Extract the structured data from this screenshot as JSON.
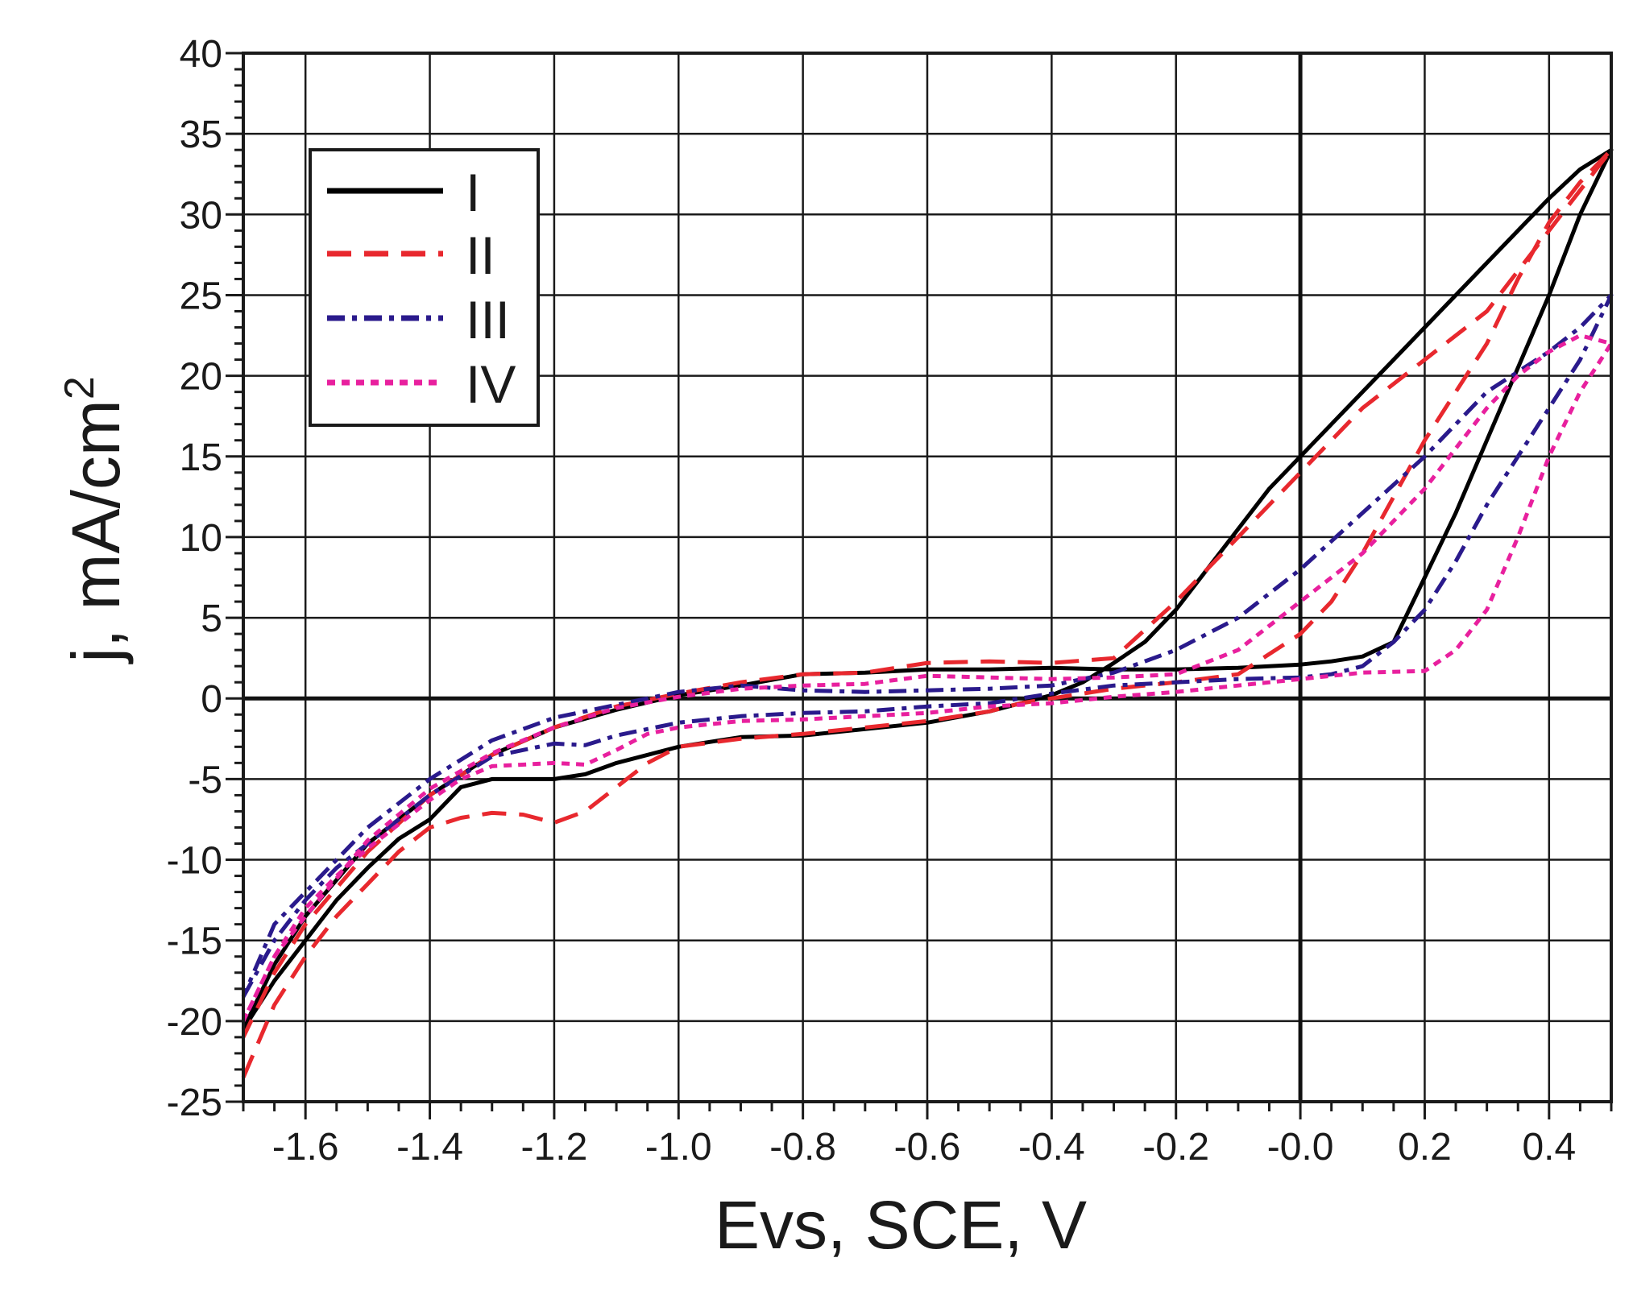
{
  "chart_data": {
    "type": "line",
    "xlabel": "Evs, SCE, V",
    "ylabel": "j, mA/cm",
    "ylabel_superscript": "2",
    "xlim": [
      -1.7,
      0.5
    ],
    "ylim": [
      -25,
      40
    ],
    "x_ticks": [
      {
        "value": -1.6,
        "label": "-1.6"
      },
      {
        "value": -1.4,
        "label": "-1.4"
      },
      {
        "value": -1.2,
        "label": "-1.2"
      },
      {
        "value": -1.0,
        "label": "-1.0"
      },
      {
        "value": -0.8,
        "label": "-0.8"
      },
      {
        "value": -0.6,
        "label": "-0.6"
      },
      {
        "value": -0.4,
        "label": "-0.4"
      },
      {
        "value": -0.2,
        "label": "-0.2"
      },
      {
        "value": 0.0,
        "label": "-0.0"
      },
      {
        "value": 0.2,
        "label": "0.2"
      },
      {
        "value": 0.4,
        "label": "0.4"
      }
    ],
    "y_ticks": [
      {
        "value": 40,
        "label": "40"
      },
      {
        "value": 35,
        "label": "35"
      },
      {
        "value": 30,
        "label": "30"
      },
      {
        "value": 25,
        "label": "25"
      },
      {
        "value": 20,
        "label": "20"
      },
      {
        "value": 15,
        "label": "15"
      },
      {
        "value": 10,
        "label": "10"
      },
      {
        "value": 5,
        "label": "5"
      },
      {
        "value": 0,
        "label": "0"
      },
      {
        "value": -5,
        "label": "-5"
      },
      {
        "value": -10,
        "label": "-10"
      },
      {
        "value": -15,
        "label": "-15"
      },
      {
        "value": -20,
        "label": "-20"
      },
      {
        "value": -25,
        "label": "-25"
      }
    ],
    "grid": true,
    "legend_position": "top-left",
    "series": [
      {
        "name": "I",
        "color": "#000000",
        "style": "solid",
        "points": [
          [
            -1.7,
            -20.5
          ],
          [
            -1.65,
            -17.5
          ],
          [
            -1.6,
            -15
          ],
          [
            -1.55,
            -12.5
          ],
          [
            -1.5,
            -10.5
          ],
          [
            -1.45,
            -8.7
          ],
          [
            -1.4,
            -7.5
          ],
          [
            -1.35,
            -5.5
          ],
          [
            -1.3,
            -5
          ],
          [
            -1.2,
            -5
          ],
          [
            -1.15,
            -4.7
          ],
          [
            -1.1,
            -4
          ],
          [
            -1.0,
            -3
          ],
          [
            -0.9,
            -2.4
          ],
          [
            -0.8,
            -2.3
          ],
          [
            -0.7,
            -1.9
          ],
          [
            -0.6,
            -1.5
          ],
          [
            -0.5,
            -0.8
          ],
          [
            -0.4,
            0.2
          ],
          [
            -0.35,
            1.0
          ],
          [
            -0.3,
            2.2
          ],
          [
            -0.25,
            3.5
          ],
          [
            -0.2,
            5.5
          ],
          [
            -0.15,
            8
          ],
          [
            -0.1,
            10.5
          ],
          [
            -0.05,
            13
          ],
          [
            0.0,
            15
          ],
          [
            0.05,
            17
          ],
          [
            0.1,
            19
          ],
          [
            0.15,
            21
          ],
          [
            0.2,
            23
          ],
          [
            0.3,
            27
          ],
          [
            0.4,
            31
          ],
          [
            0.45,
            32.8
          ],
          [
            0.5,
            34
          ],
          [
            0.45,
            30
          ],
          [
            0.4,
            25
          ],
          [
            0.35,
            20.5
          ],
          [
            0.3,
            16
          ],
          [
            0.25,
            11.5
          ],
          [
            0.2,
            7.5
          ],
          [
            0.15,
            3.5
          ],
          [
            0.1,
            2.6
          ],
          [
            0.05,
            2.3
          ],
          [
            0.0,
            2.1
          ],
          [
            -0.1,
            1.9
          ],
          [
            -0.2,
            1.8
          ],
          [
            -0.3,
            1.8
          ],
          [
            -0.4,
            1.9
          ],
          [
            -0.5,
            1.8
          ],
          [
            -0.6,
            1.8
          ],
          [
            -0.7,
            1.6
          ],
          [
            -0.8,
            1.5
          ],
          [
            -0.9,
            0.8
          ],
          [
            -1.0,
            0.2
          ],
          [
            -1.1,
            -0.7
          ],
          [
            -1.2,
            -1.8
          ],
          [
            -1.3,
            -3.5
          ],
          [
            -1.4,
            -6
          ],
          [
            -1.5,
            -9
          ],
          [
            -1.6,
            -13.5
          ],
          [
            -1.65,
            -16.5
          ],
          [
            -1.7,
            -20.5
          ]
        ]
      },
      {
        "name": "II",
        "color": "#e8282e",
        "style": "dashed",
        "points": [
          [
            -1.7,
            -23.5
          ],
          [
            -1.65,
            -19
          ],
          [
            -1.6,
            -16
          ],
          [
            -1.55,
            -13.5
          ],
          [
            -1.5,
            -11.5
          ],
          [
            -1.45,
            -9.5
          ],
          [
            -1.4,
            -8
          ],
          [
            -1.35,
            -7.4
          ],
          [
            -1.3,
            -7.1
          ],
          [
            -1.25,
            -7.2
          ],
          [
            -1.2,
            -7.7
          ],
          [
            -1.15,
            -7
          ],
          [
            -1.1,
            -5.5
          ],
          [
            -1.05,
            -4
          ],
          [
            -1.0,
            -3
          ],
          [
            -0.9,
            -2.5
          ],
          [
            -0.8,
            -2.2
          ],
          [
            -0.7,
            -1.8
          ],
          [
            -0.6,
            -1.4
          ],
          [
            -0.5,
            -0.8
          ],
          [
            -0.45,
            -0.3
          ],
          [
            -0.4,
            0
          ],
          [
            -0.3,
            0.6
          ],
          [
            -0.2,
            1.0
          ],
          [
            -0.1,
            1.5
          ],
          [
            0.0,
            4
          ],
          [
            0.05,
            6
          ],
          [
            0.1,
            9
          ],
          [
            0.15,
            12.5
          ],
          [
            0.2,
            16
          ],
          [
            0.25,
            19
          ],
          [
            0.3,
            22
          ],
          [
            0.35,
            26
          ],
          [
            0.4,
            29.5
          ],
          [
            0.45,
            32
          ],
          [
            0.5,
            34
          ],
          [
            0.45,
            31.5
          ],
          [
            0.4,
            29
          ],
          [
            0.35,
            26.5
          ],
          [
            0.3,
            24
          ],
          [
            0.2,
            21
          ],
          [
            0.1,
            18
          ],
          [
            0.0,
            14
          ],
          [
            -0.1,
            10
          ],
          [
            -0.2,
            6
          ],
          [
            -0.3,
            2.5
          ],
          [
            -0.4,
            2.2
          ],
          [
            -0.5,
            2.3
          ],
          [
            -0.6,
            2.2
          ],
          [
            -0.7,
            1.6
          ],
          [
            -0.8,
            1.5
          ],
          [
            -0.9,
            1.0
          ],
          [
            -1.0,
            0.3
          ],
          [
            -1.1,
            -0.5
          ],
          [
            -1.2,
            -1.8
          ],
          [
            -1.3,
            -3.5
          ],
          [
            -1.4,
            -6
          ],
          [
            -1.5,
            -9.5
          ],
          [
            -1.6,
            -14
          ],
          [
            -1.65,
            -17
          ],
          [
            -1.7,
            -21
          ]
        ]
      },
      {
        "name": "III",
        "color": "#2a1a8c",
        "style": "dash-dot",
        "points": [
          [
            -1.7,
            -18.5
          ],
          [
            -1.65,
            -15
          ],
          [
            -1.6,
            -12.5
          ],
          [
            -1.55,
            -10.5
          ],
          [
            -1.5,
            -9
          ],
          [
            -1.45,
            -7.5
          ],
          [
            -1.4,
            -6
          ],
          [
            -1.35,
            -4.8
          ],
          [
            -1.3,
            -3.6
          ],
          [
            -1.2,
            -2.8
          ],
          [
            -1.15,
            -2.9
          ],
          [
            -1.1,
            -2.3
          ],
          [
            -1.0,
            -1.5
          ],
          [
            -0.9,
            -1.1
          ],
          [
            -0.8,
            -0.9
          ],
          [
            -0.7,
            -0.8
          ],
          [
            -0.6,
            -0.5
          ],
          [
            -0.5,
            -0.3
          ],
          [
            -0.4,
            0.3
          ],
          [
            -0.3,
            0.8
          ],
          [
            -0.2,
            1.0
          ],
          [
            -0.1,
            1.2
          ],
          [
            0.0,
            1.3
          ],
          [
            0.05,
            1.5
          ],
          [
            0.1,
            2
          ],
          [
            0.15,
            3.5
          ],
          [
            0.2,
            5.5
          ],
          [
            0.25,
            8.5
          ],
          [
            0.3,
            12
          ],
          [
            0.35,
            15
          ],
          [
            0.4,
            18
          ],
          [
            0.45,
            21
          ],
          [
            0.5,
            25
          ],
          [
            0.45,
            23
          ],
          [
            0.4,
            21.5
          ],
          [
            0.3,
            19
          ],
          [
            0.2,
            15
          ],
          [
            0.1,
            11.5
          ],
          [
            0.0,
            8
          ],
          [
            -0.1,
            5
          ],
          [
            -0.2,
            3
          ],
          [
            -0.3,
            1.6
          ],
          [
            -0.4,
            0.8
          ],
          [
            -0.5,
            0.6
          ],
          [
            -0.6,
            0.5
          ],
          [
            -0.7,
            0.4
          ],
          [
            -0.8,
            0.5
          ],
          [
            -0.9,
            0.8
          ],
          [
            -1.0,
            0.4
          ],
          [
            -1.1,
            -0.4
          ],
          [
            -1.2,
            -1.2
          ],
          [
            -1.3,
            -2.6
          ],
          [
            -1.4,
            -5
          ],
          [
            -1.5,
            -8
          ],
          [
            -1.6,
            -12
          ],
          [
            -1.65,
            -14
          ],
          [
            -1.7,
            -18.5
          ]
        ]
      },
      {
        "name": "IV",
        "color": "#e8209e",
        "style": "dotted",
        "points": [
          [
            -1.7,
            -20
          ],
          [
            -1.65,
            -16
          ],
          [
            -1.6,
            -13
          ],
          [
            -1.55,
            -11
          ],
          [
            -1.5,
            -9.3
          ],
          [
            -1.45,
            -7.8
          ],
          [
            -1.4,
            -6.3
          ],
          [
            -1.35,
            -5
          ],
          [
            -1.3,
            -4.2
          ],
          [
            -1.2,
            -4
          ],
          [
            -1.15,
            -4.1
          ],
          [
            -1.1,
            -3.2
          ],
          [
            -1.05,
            -2.2
          ],
          [
            -1.0,
            -1.8
          ],
          [
            -0.9,
            -1.4
          ],
          [
            -0.8,
            -1.3
          ],
          [
            -0.7,
            -1.1
          ],
          [
            -0.6,
            -0.9
          ],
          [
            -0.5,
            -0.5
          ],
          [
            -0.4,
            -0.3
          ],
          [
            -0.3,
            0.1
          ],
          [
            -0.2,
            0.4
          ],
          [
            -0.1,
            0.8
          ],
          [
            0.0,
            1.2
          ],
          [
            0.1,
            1.6
          ],
          [
            0.2,
            1.7
          ],
          [
            0.25,
            3
          ],
          [
            0.3,
            5.5
          ],
          [
            0.35,
            10
          ],
          [
            0.4,
            15
          ],
          [
            0.45,
            19
          ],
          [
            0.5,
            22
          ],
          [
            0.45,
            22.5
          ],
          [
            0.4,
            21.5
          ],
          [
            0.35,
            20
          ],
          [
            0.3,
            18
          ],
          [
            0.2,
            13
          ],
          [
            0.1,
            9
          ],
          [
            0.0,
            6
          ],
          [
            -0.1,
            3
          ],
          [
            -0.2,
            1.5
          ],
          [
            -0.3,
            1.3
          ],
          [
            -0.4,
            1.2
          ],
          [
            -0.5,
            1.3
          ],
          [
            -0.6,
            1.4
          ],
          [
            -0.7,
            0.9
          ],
          [
            -0.8,
            0.8
          ],
          [
            -0.9,
            0.6
          ],
          [
            -1.0,
            0.1
          ],
          [
            -1.1,
            -0.6
          ],
          [
            -1.2,
            -1.8
          ],
          [
            -1.3,
            -3.4
          ],
          [
            -1.4,
            -5.6
          ],
          [
            -1.5,
            -8.8
          ],
          [
            -1.6,
            -13.5
          ],
          [
            -1.65,
            -16
          ],
          [
            -1.7,
            -20
          ]
        ]
      }
    ]
  }
}
